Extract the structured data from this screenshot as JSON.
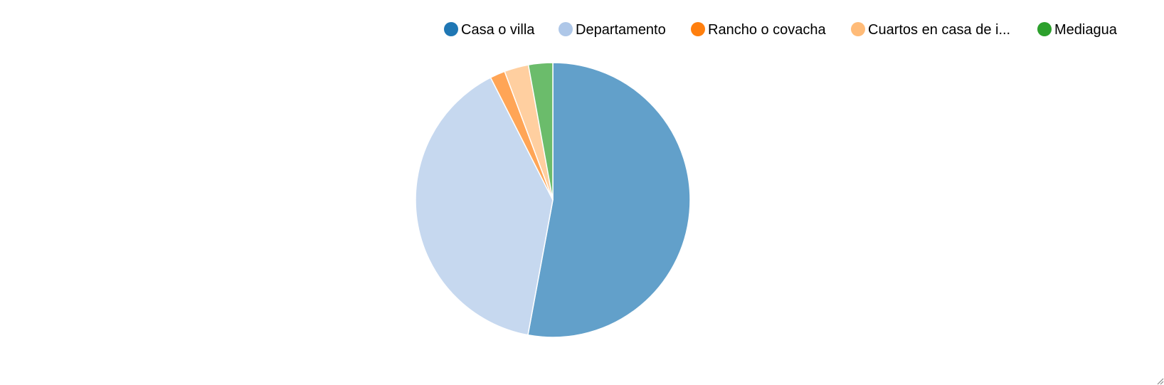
{
  "chart_data": {
    "type": "pie",
    "categories": [
      "Casa o villa",
      "Departamento",
      "Rancho o covacha",
      "Cuartos en casa de i...",
      "Mediagua"
    ],
    "values": [
      53.7,
      40.2,
      1.8,
      2.9,
      2.9
    ],
    "colors": [
      "#1f77b4",
      "#aec7e8",
      "#ff7f0e",
      "#ffbb78",
      "#2ca02c"
    ],
    "slice_opacity": 0.7,
    "legend_position": "top-right",
    "start_angle": "top",
    "direction": "clockwise"
  }
}
